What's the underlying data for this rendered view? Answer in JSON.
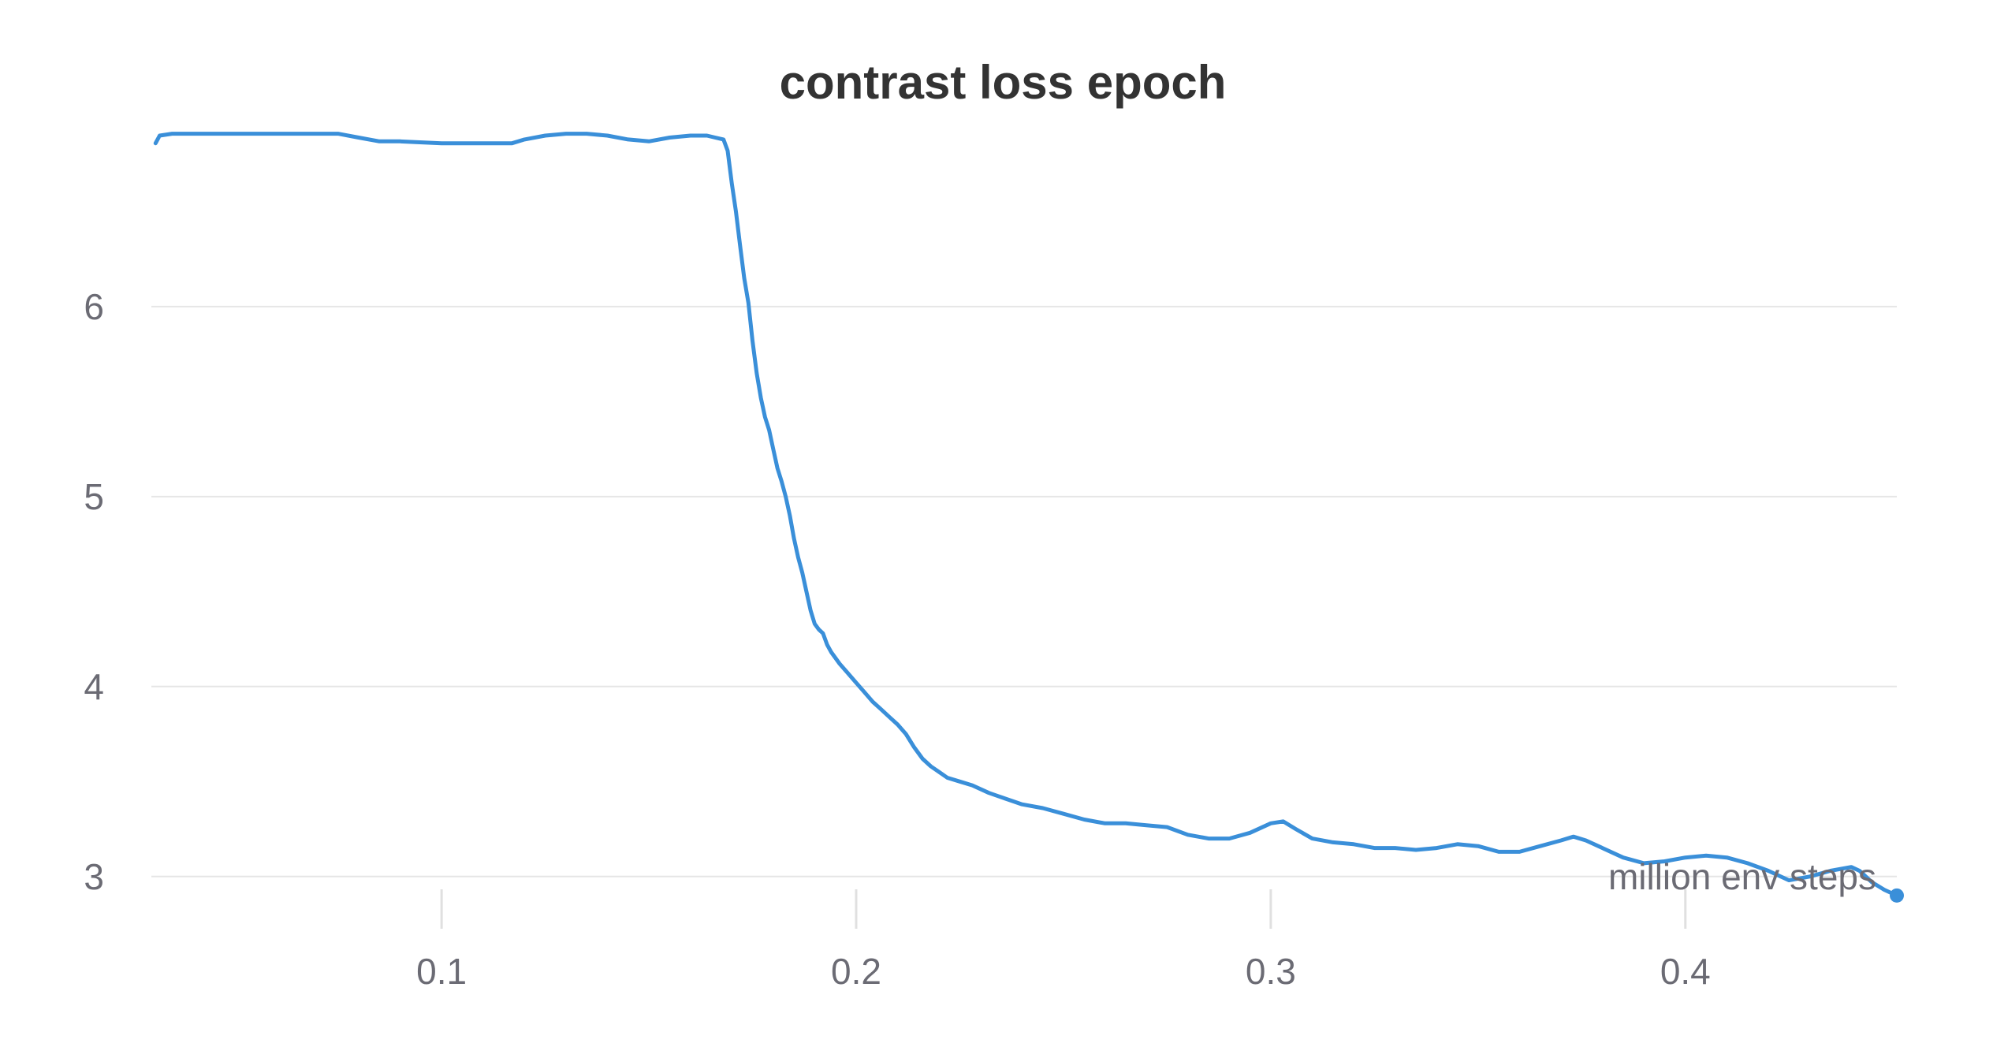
{
  "chart_data": {
    "type": "line",
    "title": "contrast loss epoch",
    "xlabel": "million env steps",
    "ylabel": "",
    "xlim": [
      0.03,
      0.451
    ],
    "ylim": [
      2.75,
      6.95
    ],
    "xticks": [
      0.1,
      0.2,
      0.3,
      0.4
    ],
    "xtick_labels": [
      "0.1",
      "0.2",
      "0.3",
      "0.4"
    ],
    "yticks": [
      3,
      4,
      5,
      6
    ],
    "ytick_labels": [
      "3",
      "4",
      "5",
      "6"
    ],
    "grid": true,
    "legend": "none",
    "color": "#3a8fd9",
    "series": [
      {
        "x": [
          0.031,
          0.032,
          0.035,
          0.05,
          0.075,
          0.08,
          0.085,
          0.09,
          0.1,
          0.11,
          0.113,
          0.117,
          0.12,
          0.125,
          0.13,
          0.135,
          0.14,
          0.145,
          0.15,
          0.155,
          0.16,
          0.164,
          0.166,
          0.168,
          0.169,
          0.17,
          0.171,
          0.172,
          0.173,
          0.174,
          0.175,
          0.176,
          0.177,
          0.178,
          0.179,
          0.18,
          0.181,
          0.182,
          0.183,
          0.184,
          0.185,
          0.186,
          0.187,
          0.188,
          0.189,
          0.19,
          0.191,
          0.192,
          0.193,
          0.194,
          0.196,
          0.198,
          0.2,
          0.202,
          0.204,
          0.206,
          0.208,
          0.21,
          0.212,
          0.214,
          0.216,
          0.218,
          0.22,
          0.222,
          0.225,
          0.228,
          0.232,
          0.236,
          0.24,
          0.245,
          0.25,
          0.255,
          0.26,
          0.265,
          0.27,
          0.275,
          0.28,
          0.285,
          0.29,
          0.295,
          0.3,
          0.303,
          0.306,
          0.31,
          0.315,
          0.32,
          0.325,
          0.33,
          0.335,
          0.34,
          0.345,
          0.35,
          0.355,
          0.36,
          0.365,
          0.37,
          0.373,
          0.376,
          0.38,
          0.385,
          0.39,
          0.395,
          0.4,
          0.405,
          0.41,
          0.415,
          0.42,
          0.425,
          0.43,
          0.435,
          0.44,
          0.442,
          0.445,
          0.448,
          0.451
        ],
        "y": [
          6.86,
          6.9,
          6.91,
          6.91,
          6.91,
          6.89,
          6.87,
          6.87,
          6.86,
          6.86,
          6.86,
          6.86,
          6.88,
          6.9,
          6.91,
          6.91,
          6.9,
          6.88,
          6.87,
          6.89,
          6.9,
          6.9,
          6.89,
          6.88,
          6.82,
          6.65,
          6.5,
          6.32,
          6.15,
          6.02,
          5.82,
          5.65,
          5.52,
          5.42,
          5.35,
          5.25,
          5.15,
          5.08,
          5.0,
          4.9,
          4.78,
          4.68,
          4.6,
          4.5,
          4.4,
          4.33,
          4.3,
          4.28,
          4.22,
          4.18,
          4.12,
          4.07,
          4.02,
          3.97,
          3.92,
          3.88,
          3.84,
          3.8,
          3.75,
          3.68,
          3.62,
          3.58,
          3.55,
          3.52,
          3.5,
          3.48,
          3.44,
          3.41,
          3.38,
          3.36,
          3.33,
          3.3,
          3.28,
          3.28,
          3.27,
          3.26,
          3.22,
          3.2,
          3.2,
          3.23,
          3.28,
          3.29,
          3.25,
          3.2,
          3.18,
          3.17,
          3.15,
          3.15,
          3.14,
          3.15,
          3.17,
          3.16,
          3.13,
          3.13,
          3.16,
          3.19,
          3.21,
          3.19,
          3.15,
          3.1,
          3.07,
          3.08,
          3.1,
          3.11,
          3.1,
          3.07,
          3.03,
          2.98,
          3.0,
          3.03,
          3.05,
          3.03,
          2.97,
          2.93,
          2.9
        ]
      }
    ]
  }
}
